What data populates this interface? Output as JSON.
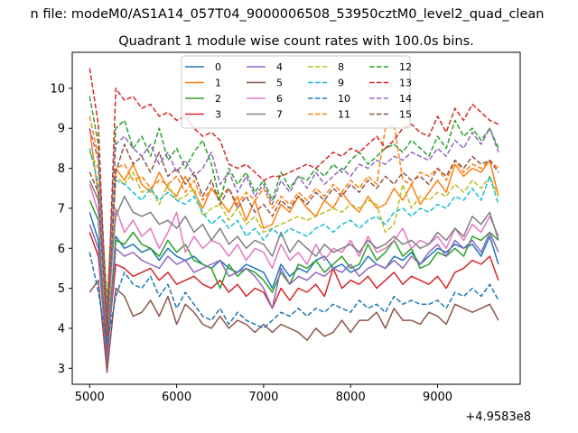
{
  "figure": {
    "suptitle": "n file: modeM0/AS1A14_057T04_9000006508_53950cztM0_level2_quad_clean",
    "offset_label": "+4.9583e8"
  },
  "chart_data": {
    "type": "line",
    "title": "Quadrant 1 module wise count rates with 100.0s bins.",
    "xlabel": "",
    "ylabel": "",
    "xlim": [
      4800,
      9950
    ],
    "ylim": [
      2.6,
      10.9
    ],
    "xticks": [
      5000,
      6000,
      7000,
      8000,
      9000
    ],
    "xtick_labels": [
      "5000",
      "6000",
      "7000",
      "8000",
      "9000"
    ],
    "yticks": [
      3,
      4,
      5,
      6,
      7,
      8,
      9,
      10
    ],
    "ytick_labels": [
      "3",
      "4",
      "5",
      "6",
      "7",
      "8",
      "9",
      "10"
    ],
    "grid": false,
    "legend_position": "top-center",
    "legend_columns": 4,
    "x": [
      5000,
      5100,
      5200,
      5300,
      5400,
      5500,
      5600,
      5700,
      5800,
      5900,
      6000,
      6100,
      6200,
      6300,
      6400,
      6500,
      6600,
      6700,
      6800,
      6900,
      7000,
      7100,
      7200,
      7300,
      7400,
      7500,
      7600,
      7700,
      7800,
      7900,
      8000,
      8100,
      8200,
      8300,
      8400,
      8500,
      8600,
      8700,
      8800,
      8900,
      9000,
      9100,
      9200,
      9300,
      9400,
      9500,
      9600,
      9700
    ],
    "series": [
      {
        "name": "0",
        "color": "#1f77b4",
        "dash": "solid",
        "values": [
          6.9,
          6.2,
          3.3,
          6.3,
          6.0,
          6.1,
          5.9,
          6.0,
          5.7,
          6.0,
          5.8,
          5.7,
          5.8,
          5.6,
          5.5,
          5.7,
          5.5,
          5.4,
          5.6,
          5.5,
          5.4,
          5.0,
          5.6,
          5.3,
          5.5,
          5.4,
          5.7,
          5.8,
          5.5,
          5.6,
          5.4,
          5.5,
          5.8,
          5.6,
          5.5,
          5.8,
          5.7,
          5.9,
          5.6,
          5.8,
          6.0,
          5.9,
          6.1,
          6.0,
          6.1,
          5.8,
          6.3,
          5.6
        ]
      },
      {
        "name": "1",
        "color": "#ff7f0e",
        "dash": "solid",
        "values": [
          9.0,
          7.3,
          3.6,
          8.0,
          7.7,
          8.1,
          7.6,
          7.4,
          7.9,
          7.5,
          7.3,
          7.8,
          7.4,
          7.0,
          7.5,
          7.2,
          6.9,
          7.3,
          6.7,
          7.2,
          6.5,
          6.6,
          7.1,
          6.9,
          7.3,
          7.0,
          6.8,
          7.2,
          7.0,
          7.4,
          7.1,
          6.9,
          7.3,
          7.0,
          7.1,
          7.5,
          7.2,
          7.6,
          7.1,
          7.4,
          7.7,
          7.4,
          8.1,
          7.8,
          8.0,
          7.9,
          8.2,
          7.3
        ]
      },
      {
        "name": "2",
        "color": "#2ca02c",
        "dash": "solid",
        "values": [
          7.2,
          6.7,
          3.5,
          6.2,
          6.1,
          6.4,
          6.1,
          6.0,
          5.8,
          6.2,
          5.9,
          6.1,
          5.7,
          5.6,
          5.5,
          5.0,
          5.6,
          5.3,
          5.5,
          5.4,
          5.2,
          4.9,
          5.4,
          5.1,
          5.6,
          5.5,
          5.7,
          5.4,
          5.6,
          5.8,
          5.5,
          5.6,
          6.1,
          5.7,
          5.9,
          6.2,
          5.8,
          6.0,
          5.5,
          5.6,
          5.9,
          5.8,
          6.0,
          5.8,
          6.3,
          6.2,
          6.4,
          6.2
        ]
      },
      {
        "name": "3",
        "color": "#d62728",
        "dash": "solid",
        "values": [
          6.4,
          5.8,
          3.4,
          5.6,
          5.5,
          5.3,
          5.4,
          5.5,
          5.2,
          5.4,
          5.1,
          5.2,
          5.3,
          5.1,
          5.0,
          5.2,
          4.9,
          5.1,
          4.8,
          5.0,
          4.9,
          4.5,
          5.0,
          4.7,
          5.0,
          4.9,
          5.1,
          4.8,
          5.5,
          5.0,
          5.2,
          5.1,
          5.3,
          5.0,
          5.2,
          5.4,
          5.1,
          5.3,
          5.2,
          5.1,
          5.3,
          5.0,
          5.4,
          5.5,
          5.7,
          5.6,
          5.8,
          5.2
        ]
      },
      {
        "name": "4",
        "color": "#9467bd",
        "dash": "solid",
        "values": [
          6.6,
          6.0,
          3.1,
          6.0,
          5.8,
          5.9,
          5.7,
          5.6,
          5.5,
          5.8,
          5.6,
          5.7,
          5.4,
          5.5,
          5.6,
          5.7,
          5.3,
          5.4,
          5.5,
          5.3,
          5.0,
          4.5,
          5.5,
          5.1,
          5.3,
          5.2,
          5.4,
          5.3,
          5.5,
          5.4,
          5.6,
          5.3,
          5.5,
          5.6,
          5.5,
          5.7,
          5.5,
          5.8,
          5.6,
          5.9,
          6.1,
          5.8,
          6.2,
          6.0,
          6.2,
          5.9,
          6.4,
          5.9
        ]
      },
      {
        "name": "5",
        "color": "#8c564b",
        "dash": "solid",
        "values": [
          4.9,
          5.2,
          2.9,
          5.0,
          4.8,
          4.3,
          4.4,
          4.7,
          4.3,
          4.8,
          4.1,
          4.6,
          4.4,
          4.1,
          4.0,
          4.3,
          4.0,
          4.2,
          4.1,
          3.9,
          4.1,
          3.9,
          4.1,
          4.0,
          3.9,
          3.7,
          4.0,
          3.8,
          3.9,
          4.2,
          3.9,
          4.2,
          4.2,
          4.4,
          4.0,
          4.5,
          4.2,
          4.2,
          4.1,
          4.4,
          4.3,
          4.1,
          4.6,
          4.5,
          4.4,
          4.5,
          4.6,
          4.2
        ]
      },
      {
        "name": "6",
        "color": "#e377c2",
        "dash": "solid",
        "values": [
          7.6,
          6.9,
          3.8,
          7.0,
          6.4,
          6.7,
          6.3,
          6.5,
          6.0,
          6.4,
          6.9,
          5.9,
          6.3,
          6.0,
          6.2,
          6.1,
          5.8,
          6.1,
          5.7,
          6.0,
          5.9,
          5.5,
          6.1,
          5.7,
          5.9,
          5.6,
          6.1,
          5.7,
          6.0,
          5.9,
          6.2,
          5.8,
          6.3,
          5.9,
          6.0,
          6.2,
          6.5,
          6.0,
          6.2,
          6.1,
          6.3,
          6.0,
          6.5,
          6.2,
          6.6,
          6.4,
          6.8,
          6.3
        ]
      },
      {
        "name": "7",
        "color": "#7f7f7f",
        "dash": "solid",
        "values": [
          7.7,
          7.2,
          4.5,
          6.8,
          7.3,
          6.9,
          6.8,
          6.9,
          6.6,
          6.7,
          6.5,
          6.8,
          6.4,
          6.6,
          6.2,
          6.5,
          6.1,
          6.3,
          6.0,
          6.2,
          6.1,
          5.8,
          6.4,
          5.9,
          6.2,
          6.0,
          5.8,
          6.1,
          5.9,
          6.0,
          6.1,
          5.9,
          6.2,
          6.0,
          6.1,
          6.3,
          6.1,
          6.2,
          6.0,
          6.1,
          6.4,
          6.2,
          6.5,
          6.3,
          6.8,
          6.6,
          6.9,
          6.2
        ]
      },
      {
        "name": "8",
        "color": "#bcbd22",
        "dash": "dashed",
        "values": [
          8.4,
          8.0,
          4.8,
          7.8,
          7.6,
          7.9,
          7.4,
          7.5,
          7.1,
          7.6,
          7.2,
          7.3,
          7.5,
          6.8,
          7.0,
          7.1,
          6.7,
          7.0,
          6.6,
          6.8,
          6.4,
          6.5,
          6.6,
          6.7,
          6.8,
          6.7,
          6.8,
          6.9,
          7.0,
          6.9,
          7.1,
          7.0,
          7.2,
          7.1,
          6.4,
          6.6,
          7.6,
          7.0,
          7.3,
          7.2,
          7.4,
          7.3,
          7.6,
          7.4,
          7.7,
          7.5,
          7.8,
          7.3
        ]
      },
      {
        "name": "9",
        "color": "#17becf",
        "dash": "dashed",
        "values": [
          8.5,
          7.6,
          4.1,
          7.7,
          7.6,
          7.4,
          7.2,
          7.5,
          7.2,
          7.4,
          7.2,
          7.1,
          7.3,
          6.9,
          6.6,
          6.8,
          6.5,
          6.7,
          6.3,
          6.5,
          6.2,
          6.5,
          6.3,
          6.5,
          6.4,
          6.3,
          6.5,
          6.6,
          6.4,
          6.6,
          6.7,
          6.5,
          6.7,
          6.8,
          6.6,
          6.9,
          7.0,
          6.8,
          7.0,
          6.9,
          7.1,
          7.0,
          7.3,
          7.2,
          7.5,
          7.2,
          7.8,
          7.1
        ]
      },
      {
        "name": "10",
        "color": "#1f77b4",
        "dash": "dashed",
        "values": [
          5.9,
          4.9,
          3.6,
          4.8,
          5.4,
          5.1,
          5.0,
          5.3,
          4.8,
          5.1,
          4.5,
          4.9,
          4.6,
          4.3,
          4.2,
          4.5,
          4.1,
          4.4,
          4.2,
          4.1,
          4.0,
          4.2,
          4.4,
          4.3,
          4.5,
          4.3,
          4.5,
          4.4,
          4.6,
          4.5,
          4.4,
          4.7,
          4.5,
          4.6,
          4.4,
          4.8,
          4.6,
          4.7,
          4.6,
          4.6,
          4.7,
          4.5,
          4.9,
          4.8,
          5.0,
          4.8,
          5.1,
          4.7
        ]
      },
      {
        "name": "11",
        "color": "#ff7f0e",
        "dash": "dashed",
        "values": [
          9.3,
          8.3,
          4.6,
          8.0,
          8.1,
          7.7,
          7.8,
          7.5,
          7.7,
          7.6,
          7.8,
          7.4,
          7.7,
          7.2,
          7.5,
          7.3,
          7.5,
          7.1,
          7.4,
          7.2,
          7.5,
          7.0,
          7.3,
          7.1,
          7.4,
          7.2,
          7.5,
          7.3,
          7.6,
          7.4,
          7.7,
          7.5,
          7.8,
          7.6,
          9.0,
          9.1,
          7.7,
          7.6,
          7.9,
          7.8,
          8.0,
          7.7,
          8.2,
          7.9,
          8.1,
          8.0,
          8.2,
          8.0
        ]
      },
      {
        "name": "12",
        "color": "#2ca02c",
        "dash": "dashed",
        "values": [
          9.8,
          8.6,
          4.4,
          9.0,
          9.2,
          8.5,
          8.8,
          8.3,
          9.0,
          8.2,
          8.5,
          8.0,
          8.4,
          8.7,
          8.1,
          7.2,
          8.0,
          7.6,
          7.9,
          7.4,
          7.7,
          7.2,
          7.9,
          7.5,
          7.8,
          7.7,
          8.0,
          7.8,
          8.1,
          7.9,
          8.2,
          8.4,
          8.1,
          8.3,
          8.5,
          8.6,
          8.4,
          8.7,
          8.5,
          8.3,
          8.8,
          8.5,
          9.2,
          8.8,
          9.0,
          8.7,
          9.0,
          8.5
        ]
      },
      {
        "name": "13",
        "color": "#d62728",
        "dash": "dashed",
        "values": [
          10.5,
          9.1,
          3.8,
          10.0,
          9.7,
          9.8,
          9.5,
          9.6,
          9.3,
          9.4,
          9.2,
          9.3,
          9.0,
          8.8,
          8.9,
          8.7,
          8.1,
          8.0,
          8.1,
          7.9,
          7.7,
          7.8,
          7.8,
          7.9,
          8.0,
          8.1,
          8.0,
          8.2,
          8.4,
          8.3,
          8.5,
          8.4,
          8.6,
          8.8,
          8.5,
          8.7,
          9.0,
          9.1,
          8.9,
          8.8,
          9.3,
          8.9,
          9.5,
          9.2,
          9.6,
          9.4,
          9.2,
          9.1
        ]
      },
      {
        "name": "14",
        "color": "#9467bd",
        "dash": "dashed",
        "values": [
          9.0,
          8.2,
          4.0,
          8.6,
          8.8,
          8.5,
          8.3,
          8.6,
          8.1,
          8.4,
          7.9,
          8.2,
          7.8,
          8.0,
          8.4,
          7.6,
          7.9,
          7.4,
          7.8,
          7.3,
          7.6,
          7.1,
          7.7,
          7.4,
          7.8,
          7.5,
          7.9,
          7.6,
          7.8,
          8.0,
          7.8,
          8.1,
          8.0,
          8.2,
          8.1,
          8.3,
          8.2,
          8.4,
          8.3,
          8.2,
          8.5,
          8.3,
          8.7,
          8.5,
          8.9,
          8.6,
          9.0,
          8.4
        ]
      },
      {
        "name": "15",
        "color": "#8c564b",
        "dash": "dashed",
        "values": [
          7.9,
          7.4,
          3.9,
          7.9,
          8.6,
          8.1,
          8.3,
          7.9,
          8.4,
          7.8,
          8.0,
          7.6,
          7.9,
          7.3,
          7.7,
          7.1,
          7.5,
          7.0,
          7.3,
          6.9,
          7.1,
          6.8,
          7.2,
          7.0,
          7.3,
          7.1,
          7.4,
          7.2,
          7.5,
          7.3,
          7.6,
          7.4,
          7.7,
          7.5,
          7.8,
          7.6,
          7.9,
          7.7,
          7.8,
          7.6,
          8.0,
          7.8,
          8.2,
          8.0,
          8.3,
          8.1,
          8.2,
          7.9
        ]
      }
    ]
  }
}
